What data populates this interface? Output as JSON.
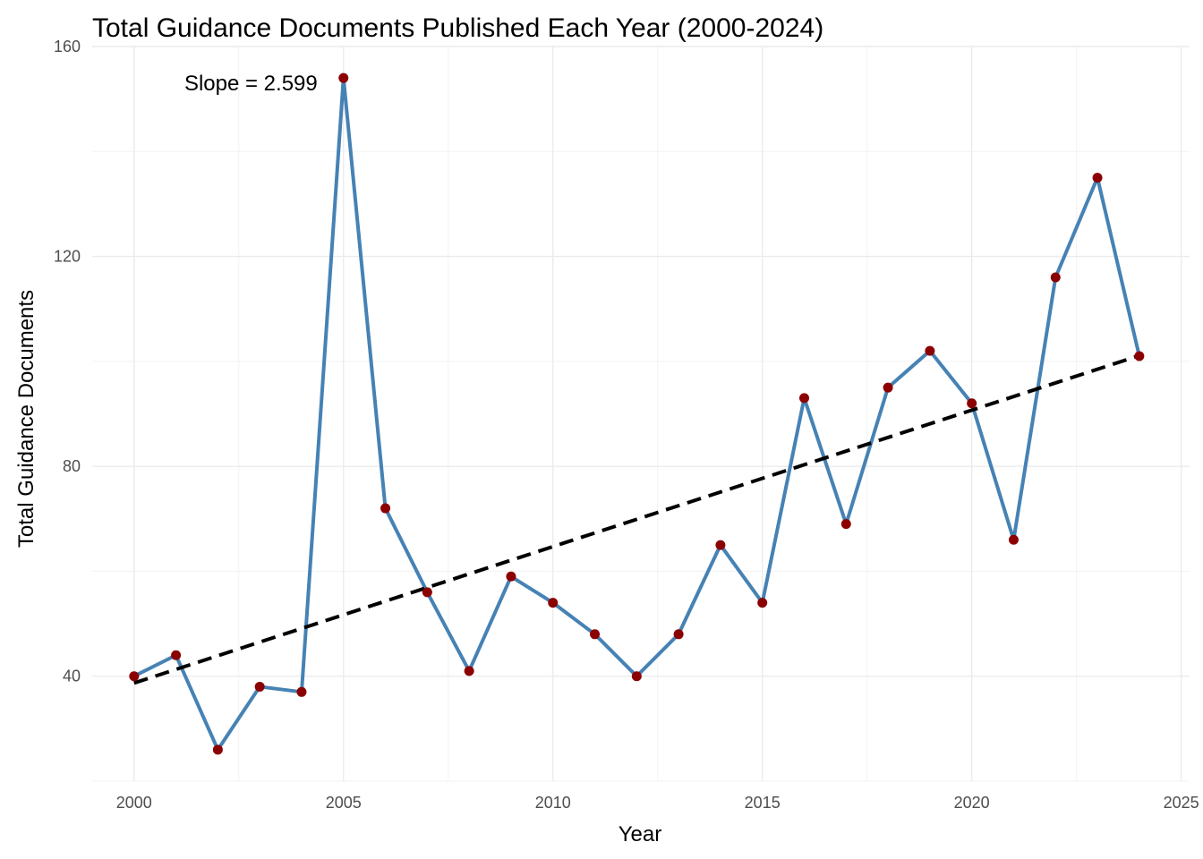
{
  "chart_data": {
    "type": "line",
    "title": "Total Guidance Documents Published Each Year (2000-2024)",
    "xlabel": "Year",
    "ylabel": "Total Guidance Documents",
    "xlim": [
      1999.0,
      2025.2
    ],
    "ylim": [
      20,
      160
    ],
    "x_ticks": [
      2000,
      2005,
      2010,
      2015,
      2020,
      2025
    ],
    "y_ticks": [
      40,
      80,
      120,
      160
    ],
    "grid": true,
    "legend": "none",
    "series": [
      {
        "x": [
          2000,
          2001,
          2002,
          2003,
          2004,
          2005,
          2006,
          2007,
          2008,
          2009,
          2010,
          2011,
          2012,
          2013,
          2014,
          2015,
          2016,
          2017,
          2018,
          2019,
          2020,
          2021,
          2022,
          2023,
          2024
        ],
        "values": [
          40,
          44,
          26,
          38,
          37,
          154,
          72,
          56,
          41,
          59,
          54,
          48,
          40,
          48,
          65,
          54,
          93,
          69,
          95,
          102,
          92,
          66,
          116,
          135,
          101
        ],
        "line_color": "#4682b4",
        "point_color": "#8b0000"
      }
    ],
    "trend_line": {
      "style": "dashed",
      "color": "#000000",
      "slope": 2.599,
      "x": [
        2000,
        2024
      ],
      "y": [
        38.7,
        101.1
      ]
    },
    "annotations": [
      {
        "text": "Slope = 2.599",
        "x": 2001.2,
        "y": 153
      }
    ]
  }
}
